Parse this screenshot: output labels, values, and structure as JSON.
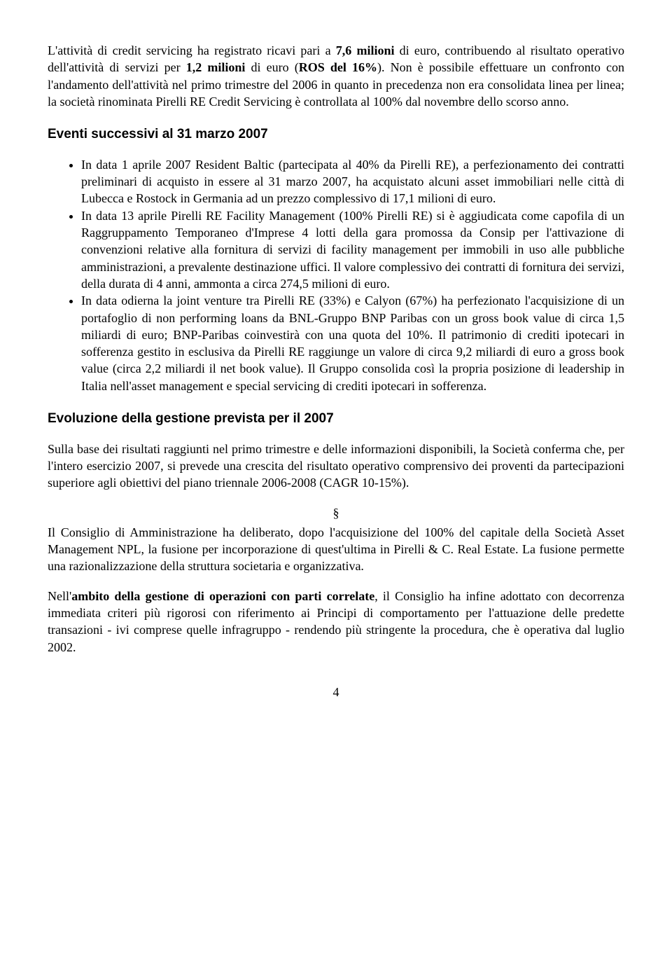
{
  "para1": "L'attività di credit servicing ha registrato ricavi pari a 7,6 milioni di euro, contribuendo al risultato operativo dell'attività di servizi per 1,2 milioni di euro (ROS del 16%). Non è possibile effettuare un confronto con l'andamento dell'attività nel primo trimestre del 2006 in quanto in precedenza non era consolidata linea per linea; la società rinominata Pirelli RE Credit Servicing è controllata al 100% dal novembre dello scorso anno.",
  "heading1": "Eventi successivi al 31 marzo 2007",
  "bullets1": [
    "In data 1 aprile 2007 Resident Baltic (partecipata al 40% da Pirelli RE), a perfezionamento dei contratti preliminari di acquisto in essere al 31 marzo 2007, ha acquistato alcuni asset immobiliari nelle città di Lubecca e Rostock in Germania ad un prezzo complessivo di 17,1 milioni di euro.",
    "In data 13 aprile Pirelli RE Facility Management (100% Pirelli RE) si è aggiudicata come capofila di un Raggruppamento Temporaneo d'Imprese 4 lotti della gara promossa da Consip per l'attivazione di convenzioni relative alla fornitura di servizi di facility management per immobili in uso alle pubbliche amministrazioni, a prevalente destinazione uffici. Il valore complessivo dei contratti di fornitura dei servizi, della durata di 4 anni, ammonta a circa 274,5 milioni di euro.",
    "In data odierna la joint venture tra Pirelli RE (33%) e Calyon (67%) ha perfezionato l'acquisizione di un portafoglio di non performing loans da BNL-Gruppo BNP Paribas con un gross book value di circa 1,5 miliardi di euro; BNP-Paribas coinvestirà con una quota del 10%. Il patrimonio di crediti ipotecari in sofferenza gestito in esclusiva da Pirelli RE raggiunge un valore di circa 9,2 miliardi di euro a gross book value (circa 2,2 miliardi il net book value). Il Gruppo consolida così la propria posizione di leadership in Italia nell'asset management e special servicing di crediti ipotecari in sofferenza."
  ],
  "heading2": "Evoluzione della gestione prevista per il 2007",
  "para2": "Sulla base dei risultati raggiunti nel primo trimestre e delle informazioni disponibili, la Società conferma che, per l'intero esercizio 2007, si prevede una crescita del risultato operativo comprensivo dei proventi da partecipazioni superiore agli obiettivi del piano triennale 2006-2008 (CAGR 10-15%).",
  "sectionSym": "§",
  "para3": "Il Consiglio di Amministrazione ha deliberato, dopo l'acquisizione del 100% del capitale della Società Asset Management NPL, la fusione per incorporazione di quest'ultima in Pirelli & C. Real Estate. La fusione permette una razionalizzazione della struttura societaria e organizzativa.",
  "para4_pre": "Nell'",
  "para4_bold": "ambito della gestione di operazioni con parti correlate",
  "para4_post": ", il Consiglio ha infine adottato con decorrenza immediata criteri più rigorosi con riferimento ai Principi di comportamento per l'attuazione delle predette transazioni - ivi comprese quelle infragruppo - rendendo più stringente la procedura, che è operativa dal luglio 2002.",
  "pageNum": "4",
  "bold_in_para1": [
    "7,6 milioni",
    "1,2 milioni",
    "ROS del 16%"
  ]
}
